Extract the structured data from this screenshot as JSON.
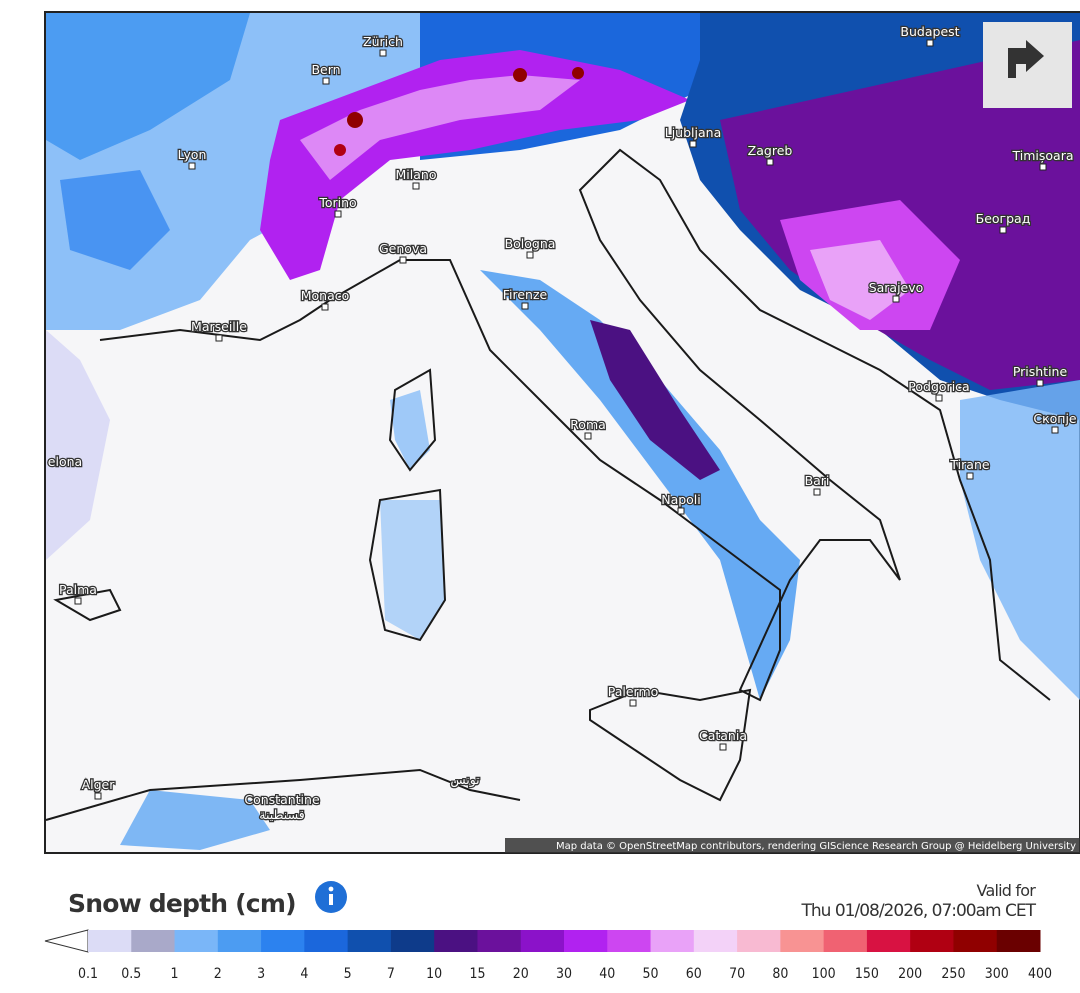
{
  "map": {
    "cities": [
      "Zürich",
      "Bern",
      "Budapest",
      "Lyon",
      "Milano",
      "Torino",
      "Ljubljana",
      "Zagreb",
      "Timișoara",
      "Београд",
      "Genova",
      "Bologna",
      "Monaco",
      "Firenze",
      "Sarajevo",
      "Marseille",
      "Podgorica",
      "Prishtine",
      "Скопје",
      "Roma",
      "Tirane",
      "elona",
      "Bari",
      "Napoli",
      "Palma",
      "Palermo",
      "Catania",
      "Alger",
      "Constantine",
      "قسنطينة",
      "تونس"
    ],
    "attribution": "Map data © OpenStreetMap contributors, rendering GIScience Research Group @ Heidelberg University"
  },
  "legend": {
    "title": "Snow depth (cm)",
    "valid_label": "Valid for",
    "valid_time": "Thu 01/08/2026, 07:00am CET",
    "ticks": [
      "0.1",
      "0.5",
      "1",
      "2",
      "3",
      "4",
      "5",
      "7",
      "10",
      "15",
      "20",
      "30",
      "40",
      "50",
      "60",
      "70",
      "80",
      "100",
      "150",
      "200",
      "250",
      "300",
      "400"
    ],
    "colors": [
      "#dcdcf6",
      "#a9a9c9",
      "#7ab6f8",
      "#4c9cf2",
      "#2c82ef",
      "#1b67dc",
      "#1050ae",
      "#0e3b8a",
      "#4b1182",
      "#6b119c",
      "#8b12c9",
      "#b122f0",
      "#cd46f1",
      "#e9a2f8",
      "#f3d2f8",
      "#f8bad2",
      "#f89393",
      "#f06272",
      "#d81242",
      "#b00012",
      "#900000",
      "#6a0000"
    ]
  }
}
